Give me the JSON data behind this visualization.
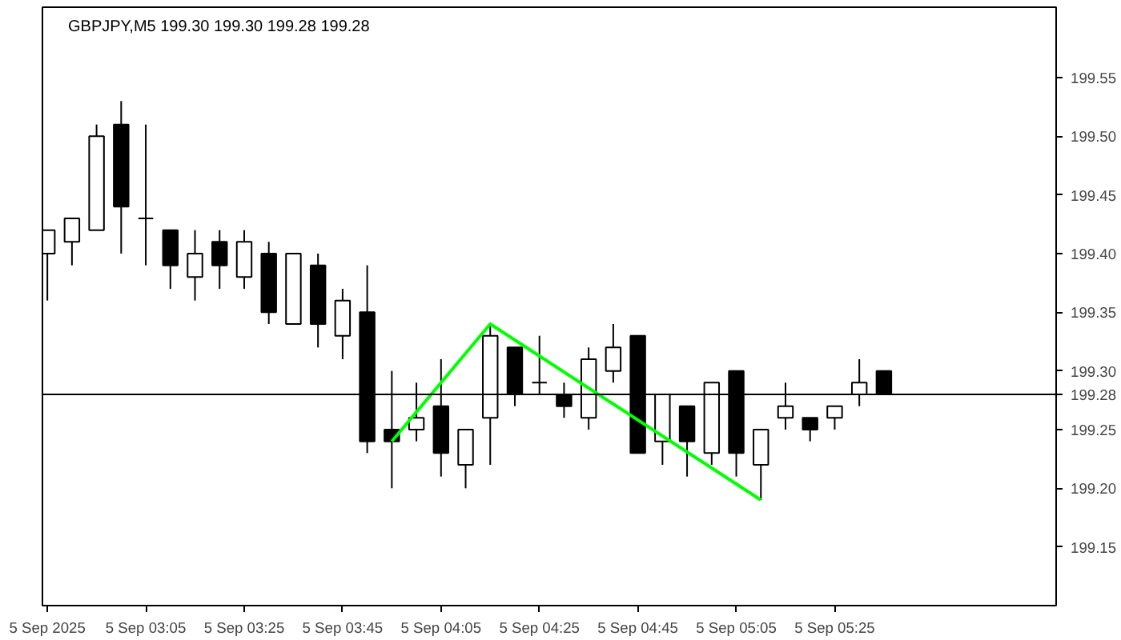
{
  "chart_data": {
    "type": "candlestick",
    "title": "GBPJPY,M5  199.30 199.30 199.28 199.28",
    "x": [
      "2025-09-05T02:45",
      "2025-09-05T02:50",
      "2025-09-05T02:55",
      "2025-09-05T03:00",
      "2025-09-05T03:05",
      "2025-09-05T03:10",
      "2025-09-05T03:15",
      "2025-09-05T03:20",
      "2025-09-05T03:25",
      "2025-09-05T03:30",
      "2025-09-05T03:35",
      "2025-09-05T03:40",
      "2025-09-05T03:45",
      "2025-09-05T03:50",
      "2025-09-05T03:55",
      "2025-09-05T04:00",
      "2025-09-05T04:05",
      "2025-09-05T04:10",
      "2025-09-05T04:15",
      "2025-09-05T04:20",
      "2025-09-05T04:25",
      "2025-09-05T04:30",
      "2025-09-05T04:35",
      "2025-09-05T04:40",
      "2025-09-05T04:45",
      "2025-09-05T04:50",
      "2025-09-05T04:55",
      "2025-09-05T05:00",
      "2025-09-05T05:05",
      "2025-09-05T05:10",
      "2025-09-05T05:15",
      "2025-09-05T05:20",
      "2025-09-05T05:25",
      "2025-09-05T05:30",
      "2025-09-05T05:35"
    ],
    "ohlc": [
      [
        199.4,
        199.42,
        199.36,
        199.42
      ],
      [
        199.41,
        199.43,
        199.39,
        199.43
      ],
      [
        199.42,
        199.51,
        199.42,
        199.5
      ],
      [
        199.51,
        199.53,
        199.4,
        199.44
      ],
      [
        199.43,
        199.51,
        199.39,
        199.43
      ],
      [
        199.42,
        199.42,
        199.37,
        199.39
      ],
      [
        199.38,
        199.42,
        199.36,
        199.4
      ],
      [
        199.41,
        199.42,
        199.37,
        199.39
      ],
      [
        199.38,
        199.42,
        199.37,
        199.41
      ],
      [
        199.4,
        199.41,
        199.34,
        199.35
      ],
      [
        199.34,
        199.4,
        199.34,
        199.4
      ],
      [
        199.39,
        199.4,
        199.32,
        199.34
      ],
      [
        199.33,
        199.37,
        199.31,
        199.36
      ],
      [
        199.35,
        199.39,
        199.23,
        199.24
      ],
      [
        199.25,
        199.3,
        199.2,
        199.24
      ],
      [
        199.25,
        199.29,
        199.24,
        199.26
      ],
      [
        199.27,
        199.31,
        199.21,
        199.23
      ],
      [
        199.22,
        199.25,
        199.2,
        199.25
      ],
      [
        199.26,
        199.34,
        199.22,
        199.33
      ],
      [
        199.32,
        199.32,
        199.27,
        199.28
      ],
      [
        199.29,
        199.33,
        199.28,
        199.29
      ],
      [
        199.28,
        199.29,
        199.26,
        199.27
      ],
      [
        199.26,
        199.32,
        199.25,
        199.31
      ],
      [
        199.3,
        199.34,
        199.29,
        199.32
      ],
      [
        199.33,
        199.33,
        199.23,
        199.23
      ],
      [
        199.24,
        199.28,
        199.22,
        199.28
      ],
      [
        199.27,
        199.27,
        199.21,
        199.24
      ],
      [
        199.23,
        199.29,
        199.22,
        199.29
      ],
      [
        199.3,
        199.3,
        199.21,
        199.23
      ],
      [
        199.22,
        199.25,
        199.19,
        199.25
      ],
      [
        199.26,
        199.29,
        199.25,
        199.27
      ],
      [
        199.26,
        199.26,
        199.24,
        199.25
      ],
      [
        199.26,
        199.27,
        199.25,
        199.27
      ],
      [
        199.28,
        199.31,
        199.27,
        199.29
      ],
      [
        199.3,
        199.3,
        199.28,
        199.28
      ]
    ],
    "series": [
      {
        "type": "line",
        "color": "#00ff00",
        "x": [
          "2025-09-05T03:55",
          "2025-09-05T04:15",
          "2025-09-05T05:10"
        ],
        "values": [
          199.24,
          199.34,
          199.19
        ]
      }
    ],
    "xlim": [
      "2025-09-05T02:44",
      "2025-09-05T06:10"
    ],
    "xticks": [
      {
        "value": "2025-09-05T02:45",
        "label": "5 Sep 2025"
      },
      {
        "value": "2025-09-05T03:05",
        "label": "5 Sep 03:05"
      },
      {
        "value": "2025-09-05T03:25",
        "label": "5 Sep 03:25"
      },
      {
        "value": "2025-09-05T03:45",
        "label": "5 Sep 03:45"
      },
      {
        "value": "2025-09-05T04:05",
        "label": "5 Sep 04:05"
      },
      {
        "value": "2025-09-05T04:25",
        "label": "5 Sep 04:25"
      },
      {
        "value": "2025-09-05T04:45",
        "label": "5 Sep 04:45"
      },
      {
        "value": "2025-09-05T05:05",
        "label": "5 Sep 05:05"
      },
      {
        "value": "2025-09-05T05:25",
        "label": "5 Sep 05:25"
      }
    ],
    "ylim": [
      199.1,
      199.61
    ],
    "yticks": [
      {
        "value": 199.15,
        "label": "199.15"
      },
      {
        "value": 199.2,
        "label": "199.20"
      },
      {
        "value": 199.25,
        "label": "199.25"
      },
      {
        "value": 199.3,
        "label": "199.30"
      },
      {
        "value": 199.35,
        "label": "199.35"
      },
      {
        "value": 199.4,
        "label": "199.40"
      },
      {
        "value": 199.45,
        "label": "199.45"
      },
      {
        "value": 199.5,
        "label": "199.50"
      },
      {
        "value": 199.55,
        "label": "199.55"
      }
    ],
    "ref_lines": [
      {
        "axis": "y",
        "value": 199.28,
        "label": "199.28",
        "color": "#000000"
      }
    ],
    "grid": false
  }
}
